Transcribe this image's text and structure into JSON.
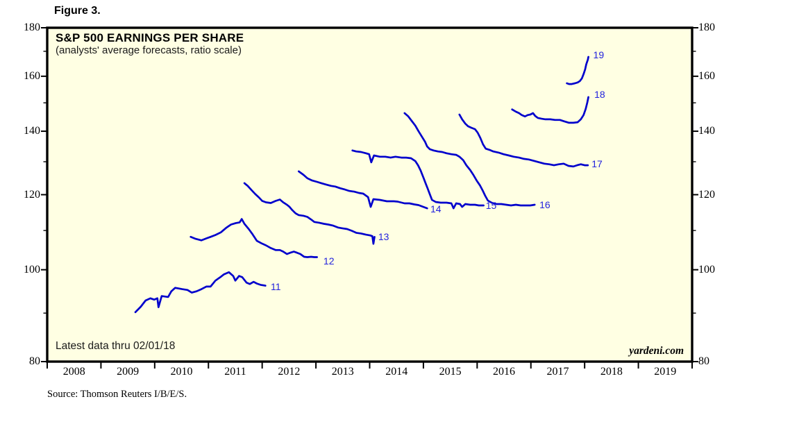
{
  "figure": {
    "label": "Figure 3."
  },
  "source": "Source: Thomson Reuters I/B/E/S.",
  "chart_data": {
    "type": "line",
    "title": "S&P 500 EARNINGS PER SHARE",
    "subtitle": "(analysts' average forecasts, ratio scale)",
    "note": "Latest data thru 02/01/18",
    "watermark": "yardeni.com",
    "colors": {
      "line": "#0000cc",
      "label": "#2222dd",
      "plot_bg": "#ffffe3",
      "axis": "#000000"
    },
    "x_axis": {
      "min": 2008,
      "max": 2020,
      "year_labels": [
        "2008",
        "2009",
        "2010",
        "2011",
        "2012",
        "2013",
        "2014",
        "2015",
        "2016",
        "2017",
        "2018",
        "2019"
      ]
    },
    "y_axis": {
      "scale": "ratio (log)",
      "min": 80,
      "max": 180,
      "major_ticks": [
        180,
        160,
        140,
        120,
        100,
        80
      ],
      "minor_ticks": [
        170,
        150,
        130,
        110,
        90
      ]
    },
    "series": [
      {
        "name": "2011 forecast",
        "label": "11",
        "label_at": [
          2012.16,
          96.0
        ],
        "points": [
          [
            2009.64,
            90.2
          ],
          [
            2009.74,
            91.4
          ],
          [
            2009.83,
            92.8
          ],
          [
            2009.92,
            93.3
          ],
          [
            2009.99,
            93.0
          ],
          [
            2010.05,
            93.3
          ],
          [
            2010.07,
            91.3
          ],
          [
            2010.13,
            93.8
          ],
          [
            2010.25,
            93.6
          ],
          [
            2010.31,
            94.9
          ],
          [
            2010.38,
            95.7
          ],
          [
            2010.51,
            95.4
          ],
          [
            2010.61,
            95.2
          ],
          [
            2010.69,
            94.6
          ],
          [
            2010.78,
            94.9
          ],
          [
            2010.87,
            95.4
          ],
          [
            2010.96,
            96.0
          ],
          [
            2011.04,
            96.0
          ],
          [
            2011.13,
            97.4
          ],
          [
            2011.22,
            98.2
          ],
          [
            2011.29,
            98.9
          ],
          [
            2011.38,
            99.4
          ],
          [
            2011.46,
            98.5
          ],
          [
            2011.5,
            97.4
          ],
          [
            2011.57,
            98.5
          ],
          [
            2011.63,
            98.2
          ],
          [
            2011.71,
            96.9
          ],
          [
            2011.77,
            96.6
          ],
          [
            2011.84,
            97.1
          ],
          [
            2011.9,
            96.7
          ],
          [
            2011.97,
            96.4
          ],
          [
            2012.06,
            96.2
          ]
        ]
      },
      {
        "name": "2012 forecast",
        "label": "12",
        "label_at": [
          2013.14,
          102.2
        ],
        "points": [
          [
            2010.67,
            108.3
          ],
          [
            2010.76,
            107.8
          ],
          [
            2010.87,
            107.4
          ],
          [
            2010.96,
            107.9
          ],
          [
            2011.04,
            108.3
          ],
          [
            2011.13,
            108.8
          ],
          [
            2011.23,
            109.5
          ],
          [
            2011.33,
            110.7
          ],
          [
            2011.42,
            111.6
          ],
          [
            2011.51,
            112.0
          ],
          [
            2011.58,
            112.2
          ],
          [
            2011.62,
            113.1
          ],
          [
            2011.67,
            111.8
          ],
          [
            2011.75,
            110.4
          ],
          [
            2011.81,
            109.2
          ],
          [
            2011.9,
            107.3
          ],
          [
            2011.99,
            106.6
          ],
          [
            2012.07,
            106.1
          ],
          [
            2012.16,
            105.4
          ],
          [
            2012.25,
            104.9
          ],
          [
            2012.33,
            104.9
          ],
          [
            2012.39,
            104.5
          ],
          [
            2012.46,
            103.9
          ],
          [
            2012.52,
            104.2
          ],
          [
            2012.59,
            104.5
          ],
          [
            2012.65,
            104.2
          ],
          [
            2012.71,
            103.9
          ],
          [
            2012.78,
            103.2
          ],
          [
            2012.84,
            103.1
          ],
          [
            2012.91,
            103.2
          ],
          [
            2012.97,
            103.1
          ],
          [
            2013.02,
            103.1
          ]
        ]
      },
      {
        "name": "2013 forecast",
        "label": "13",
        "label_at": [
          2014.16,
          108.4
        ],
        "points": [
          [
            2011.67,
            123.4
          ],
          [
            2011.73,
            122.6
          ],
          [
            2011.81,
            121.2
          ],
          [
            2011.87,
            120.2
          ],
          [
            2011.94,
            119.2
          ],
          [
            2012.0,
            118.2
          ],
          [
            2012.07,
            117.8
          ],
          [
            2012.16,
            117.6
          ],
          [
            2012.25,
            118.2
          ],
          [
            2012.33,
            118.6
          ],
          [
            2012.39,
            117.8
          ],
          [
            2012.46,
            117.1
          ],
          [
            2012.51,
            116.5
          ],
          [
            2012.56,
            115.6
          ],
          [
            2012.62,
            114.7
          ],
          [
            2012.68,
            114.2
          ],
          [
            2012.77,
            114.0
          ],
          [
            2012.84,
            113.7
          ],
          [
            2012.91,
            113.0
          ],
          [
            2012.97,
            112.3
          ],
          [
            2013.06,
            112.1
          ],
          [
            2013.15,
            111.8
          ],
          [
            2013.23,
            111.6
          ],
          [
            2013.32,
            111.3
          ],
          [
            2013.41,
            110.8
          ],
          [
            2013.49,
            110.6
          ],
          [
            2013.58,
            110.4
          ],
          [
            2013.67,
            109.9
          ],
          [
            2013.75,
            109.4
          ],
          [
            2013.84,
            109.2
          ],
          [
            2013.93,
            108.9
          ],
          [
            2014.01,
            108.7
          ],
          [
            2014.05,
            108.5
          ],
          [
            2014.07,
            106.5
          ],
          [
            2014.09,
            108.3
          ]
        ]
      },
      {
        "name": "2014 forecast",
        "label": "14",
        "label_at": [
          2015.13,
          115.9
        ],
        "points": [
          [
            2012.68,
            127.0
          ],
          [
            2012.77,
            125.9
          ],
          [
            2012.84,
            124.9
          ],
          [
            2012.93,
            124.2
          ],
          [
            2013.02,
            123.8
          ],
          [
            2013.1,
            123.4
          ],
          [
            2013.19,
            123.0
          ],
          [
            2013.28,
            122.6
          ],
          [
            2013.36,
            122.4
          ],
          [
            2013.45,
            121.9
          ],
          [
            2013.54,
            121.5
          ],
          [
            2013.62,
            121.1
          ],
          [
            2013.71,
            120.9
          ],
          [
            2013.8,
            120.5
          ],
          [
            2013.88,
            120.3
          ],
          [
            2013.97,
            119.3
          ],
          [
            2014.02,
            116.5
          ],
          [
            2014.07,
            118.7
          ],
          [
            2014.19,
            118.5
          ],
          [
            2014.32,
            118.1
          ],
          [
            2014.45,
            118.1
          ],
          [
            2014.52,
            118.0
          ],
          [
            2014.65,
            117.5
          ],
          [
            2014.74,
            117.5
          ],
          [
            2014.83,
            117.2
          ],
          [
            2014.91,
            117.0
          ],
          [
            2015.0,
            116.5
          ],
          [
            2015.07,
            116.1
          ]
        ]
      },
      {
        "name": "2015 forecast",
        "label": "15",
        "label_at": [
          2016.16,
          116.9
        ],
        "points": [
          [
            2013.68,
            133.6
          ],
          [
            2013.75,
            133.3
          ],
          [
            2013.84,
            133.1
          ],
          [
            2013.93,
            132.7
          ],
          [
            2013.99,
            132.4
          ],
          [
            2014.03,
            129.8
          ],
          [
            2014.08,
            132.0
          ],
          [
            2014.19,
            131.6
          ],
          [
            2014.29,
            131.6
          ],
          [
            2014.39,
            131.3
          ],
          [
            2014.48,
            131.6
          ],
          [
            2014.59,
            131.3
          ],
          [
            2014.68,
            131.3
          ],
          [
            2014.77,
            131.1
          ],
          [
            2014.85,
            130.2
          ],
          [
            2014.9,
            128.9
          ],
          [
            2014.95,
            127.2
          ],
          [
            2015.0,
            125.1
          ],
          [
            2015.04,
            123.4
          ],
          [
            2015.08,
            121.8
          ],
          [
            2015.12,
            120.1
          ],
          [
            2015.16,
            118.5
          ],
          [
            2015.23,
            117.9
          ],
          [
            2015.32,
            117.7
          ],
          [
            2015.43,
            117.7
          ],
          [
            2015.52,
            117.5
          ],
          [
            2015.56,
            116.1
          ],
          [
            2015.61,
            117.5
          ],
          [
            2015.68,
            117.3
          ],
          [
            2015.72,
            116.5
          ],
          [
            2015.78,
            117.3
          ],
          [
            2015.87,
            117.1
          ],
          [
            2015.96,
            117.1
          ],
          [
            2016.03,
            116.9
          ],
          [
            2016.12,
            116.9
          ]
        ]
      },
      {
        "name": "2016 forecast",
        "label": "16",
        "label_at": [
          2017.16,
          117.1
        ],
        "points": [
          [
            2014.65,
            146.3
          ],
          [
            2014.72,
            145.1
          ],
          [
            2014.78,
            143.6
          ],
          [
            2014.85,
            141.9
          ],
          [
            2014.91,
            140.0
          ],
          [
            2014.97,
            138.2
          ],
          [
            2015.03,
            136.5
          ],
          [
            2015.07,
            134.9
          ],
          [
            2015.12,
            134.0
          ],
          [
            2015.19,
            133.6
          ],
          [
            2015.27,
            133.3
          ],
          [
            2015.35,
            133.1
          ],
          [
            2015.43,
            132.7
          ],
          [
            2015.52,
            132.4
          ],
          [
            2015.61,
            132.2
          ],
          [
            2015.67,
            131.6
          ],
          [
            2015.74,
            130.5
          ],
          [
            2015.8,
            128.9
          ],
          [
            2015.87,
            127.4
          ],
          [
            2015.93,
            125.9
          ],
          [
            2015.99,
            124.2
          ],
          [
            2016.05,
            122.8
          ],
          [
            2016.1,
            121.3
          ],
          [
            2016.15,
            119.7
          ],
          [
            2016.2,
            118.3
          ],
          [
            2016.27,
            117.7
          ],
          [
            2016.36,
            117.3
          ],
          [
            2016.45,
            117.3
          ],
          [
            2016.54,
            117.1
          ],
          [
            2016.63,
            116.9
          ],
          [
            2016.72,
            117.1
          ],
          [
            2016.81,
            116.9
          ],
          [
            2016.9,
            116.9
          ],
          [
            2016.99,
            116.9
          ],
          [
            2017.07,
            117.1
          ]
        ]
      },
      {
        "name": "2017 forecast",
        "label": "17",
        "label_at": [
          2018.13,
          129.4
        ],
        "points": [
          [
            2015.67,
            145.8
          ],
          [
            2015.72,
            144.1
          ],
          [
            2015.78,
            142.6
          ],
          [
            2015.83,
            141.7
          ],
          [
            2015.89,
            141.2
          ],
          [
            2015.96,
            140.7
          ],
          [
            2016.01,
            139.5
          ],
          [
            2016.06,
            137.7
          ],
          [
            2016.11,
            135.6
          ],
          [
            2016.16,
            134.2
          ],
          [
            2016.23,
            133.8
          ],
          [
            2016.3,
            133.3
          ],
          [
            2016.4,
            132.9
          ],
          [
            2016.49,
            132.4
          ],
          [
            2016.59,
            132.0
          ],
          [
            2016.68,
            131.6
          ],
          [
            2016.78,
            131.3
          ],
          [
            2016.87,
            130.9
          ],
          [
            2016.96,
            130.7
          ],
          [
            2017.07,
            130.2
          ],
          [
            2017.16,
            129.8
          ],
          [
            2017.25,
            129.4
          ],
          [
            2017.34,
            129.2
          ],
          [
            2017.43,
            128.9
          ],
          [
            2017.52,
            129.2
          ],
          [
            2017.61,
            129.4
          ],
          [
            2017.7,
            128.7
          ],
          [
            2017.79,
            128.5
          ],
          [
            2017.86,
            128.9
          ],
          [
            2017.93,
            129.2
          ],
          [
            2018.0,
            128.9
          ],
          [
            2018.06,
            128.9
          ]
        ]
      },
      {
        "name": "2018 forecast",
        "label": "18",
        "label_at": [
          2018.18,
          153.1
        ],
        "points": [
          [
            2016.65,
            147.6
          ],
          [
            2016.72,
            146.8
          ],
          [
            2016.78,
            146.3
          ],
          [
            2016.83,
            145.6
          ],
          [
            2016.89,
            145.1
          ],
          [
            2016.94,
            145.6
          ],
          [
            2016.99,
            145.8
          ],
          [
            2017.04,
            146.3
          ],
          [
            2017.08,
            145.3
          ],
          [
            2017.13,
            144.6
          ],
          [
            2017.2,
            144.3
          ],
          [
            2017.27,
            144.1
          ],
          [
            2017.36,
            144.1
          ],
          [
            2017.45,
            143.9
          ],
          [
            2017.54,
            143.9
          ],
          [
            2017.62,
            143.4
          ],
          [
            2017.71,
            142.9
          ],
          [
            2017.79,
            142.9
          ],
          [
            2017.87,
            143.1
          ],
          [
            2017.93,
            144.1
          ],
          [
            2017.98,
            145.6
          ],
          [
            2018.02,
            147.8
          ],
          [
            2018.05,
            150.1
          ],
          [
            2018.07,
            152.1
          ]
        ]
      },
      {
        "name": "2019 forecast",
        "label": "19",
        "label_at": [
          2018.16,
          168.5
        ],
        "points": [
          [
            2017.67,
            157.3
          ],
          [
            2017.71,
            157.0
          ],
          [
            2017.76,
            157.0
          ],
          [
            2017.82,
            157.3
          ],
          [
            2017.87,
            157.6
          ],
          [
            2017.91,
            158.1
          ],
          [
            2017.95,
            159.2
          ],
          [
            2017.98,
            160.8
          ],
          [
            2018.01,
            162.7
          ],
          [
            2018.03,
            164.7
          ],
          [
            2018.06,
            166.6
          ],
          [
            2018.07,
            167.7
          ]
        ]
      }
    ]
  }
}
